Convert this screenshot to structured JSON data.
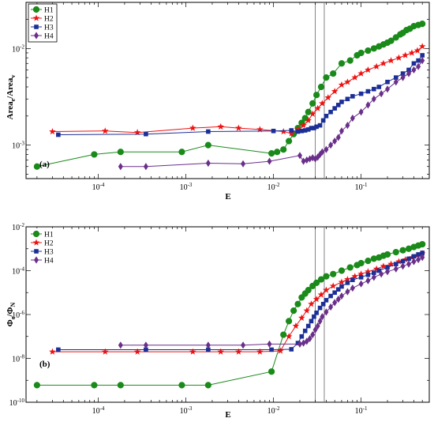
{
  "chart_data": [
    {
      "type": "line",
      "panel_label": "(a)",
      "xlabel": "E",
      "ylabel_main": "Area",
      "ylabel_sub1": "e",
      "ylabel_slash": "/Area",
      "ylabel_sub2": "v",
      "xscale": "log",
      "yscale": "log",
      "xlim": [
        1.5e-05,
        0.6
      ],
      "ylim": [
        0.00045,
        0.03
      ],
      "x_ticks": [
        {
          "value": 0.0001,
          "base": "10",
          "exp": "-4"
        },
        {
          "value": 0.001,
          "base": "10",
          "exp": "-3"
        },
        {
          "value": 0.01,
          "base": "10",
          "exp": "-2"
        },
        {
          "value": 0.1,
          "base": "10",
          "exp": "-1"
        }
      ],
      "y_ticks": [
        {
          "value": 0.001,
          "base": "10",
          "exp": "-3"
        },
        {
          "value": 0.01,
          "base": "10",
          "exp": "-2"
        }
      ],
      "vlines": [
        0.03,
        0.038
      ],
      "legend_position": "top-left",
      "series": [
        {
          "name": "H1",
          "color": "#1a8a1a",
          "marker": "circle",
          "x": [
            2e-05,
            9e-05,
            0.00018,
            0.0009,
            0.0018,
            0.0095,
            0.011,
            0.013,
            0.015,
            0.017,
            0.019,
            0.021,
            0.023,
            0.025,
            0.028,
            0.031,
            0.035,
            0.04,
            0.048,
            0.06,
            0.075,
            0.09,
            0.1,
            0.12,
            0.14,
            0.16,
            0.18,
            0.2,
            0.22,
            0.25,
            0.28,
            0.3,
            0.33,
            0.36,
            0.4,
            0.45,
            0.5
          ],
          "y": [
            0.0006,
            0.0008,
            0.00085,
            0.00085,
            0.001,
            0.00082,
            0.00085,
            0.0009,
            0.0011,
            0.0013,
            0.0015,
            0.0017,
            0.0019,
            0.0022,
            0.0027,
            0.0033,
            0.004,
            0.005,
            0.0055,
            0.007,
            0.0075,
            0.0085,
            0.009,
            0.0095,
            0.01,
            0.0105,
            0.011,
            0.0115,
            0.012,
            0.013,
            0.014,
            0.0145,
            0.0155,
            0.016,
            0.017,
            0.0175,
            0.018
          ]
        },
        {
          "name": "H2",
          "color": "#ee1111",
          "marker": "star",
          "x": [
            3e-05,
            0.00012,
            0.00028,
            0.0012,
            0.0025,
            0.004,
            0.007,
            0.013,
            0.016,
            0.019,
            0.022,
            0.025,
            0.028,
            0.032,
            0.036,
            0.042,
            0.05,
            0.06,
            0.07,
            0.085,
            0.1,
            0.12,
            0.15,
            0.18,
            0.22,
            0.27,
            0.32,
            0.38,
            0.44,
            0.5
          ],
          "y": [
            0.00138,
            0.0014,
            0.00135,
            0.0015,
            0.00155,
            0.0015,
            0.00145,
            0.00138,
            0.00132,
            0.00145,
            0.0016,
            0.0018,
            0.0021,
            0.0024,
            0.0027,
            0.0031,
            0.0036,
            0.0042,
            0.0045,
            0.005,
            0.0055,
            0.006,
            0.0065,
            0.007,
            0.0075,
            0.008,
            0.0085,
            0.009,
            0.0095,
            0.0105
          ]
        },
        {
          "name": "H3",
          "color": "#1c2f96",
          "marker": "square",
          "x": [
            3.5e-05,
            0.00035,
            0.0018,
            0.01,
            0.016,
            0.019,
            0.021,
            0.023,
            0.025,
            0.027,
            0.029,
            0.031,
            0.034,
            0.037,
            0.04,
            0.045,
            0.05,
            0.055,
            0.06,
            0.07,
            0.08,
            0.1,
            0.12,
            0.14,
            0.16,
            0.2,
            0.25,
            0.3,
            0.35,
            0.4,
            0.45,
            0.5
          ],
          "y": [
            0.00128,
            0.0013,
            0.00138,
            0.0014,
            0.00142,
            0.00138,
            0.0014,
            0.00142,
            0.00145,
            0.0015,
            0.0015,
            0.00155,
            0.0016,
            0.0018,
            0.002,
            0.0022,
            0.0024,
            0.0026,
            0.0028,
            0.003,
            0.0032,
            0.0034,
            0.0036,
            0.0038,
            0.004,
            0.0045,
            0.005,
            0.0055,
            0.006,
            0.007,
            0.0075,
            0.0085
          ]
        },
        {
          "name": "H4",
          "color": "#6a2f8a",
          "marker": "diamond",
          "x": [
            0.00018,
            0.00035,
            0.0018,
            0.0045,
            0.009,
            0.02,
            0.022,
            0.024,
            0.026,
            0.028,
            0.03,
            0.032,
            0.034,
            0.036,
            0.04,
            0.045,
            0.05,
            0.055,
            0.06,
            0.07,
            0.08,
            0.1,
            0.12,
            0.14,
            0.17,
            0.2,
            0.25,
            0.3,
            0.35,
            0.4,
            0.45,
            0.5
          ],
          "y": [
            0.0006,
            0.0006,
            0.00065,
            0.00064,
            0.00068,
            0.00078,
            0.00068,
            0.0007,
            0.00072,
            0.00074,
            0.00072,
            0.00075,
            0.0008,
            0.00085,
            0.0009,
            0.001,
            0.0011,
            0.0012,
            0.0014,
            0.0016,
            0.0019,
            0.0022,
            0.0026,
            0.003,
            0.0034,
            0.0038,
            0.0045,
            0.005,
            0.0055,
            0.006,
            0.0065,
            0.0075
          ]
        }
      ]
    },
    {
      "type": "line",
      "panel_label": "(b)",
      "xlabel": "E",
      "ylabel_main": "Φ",
      "ylabel_sub1": "e",
      "ylabel_slash": "/Φ",
      "ylabel_sub2": "N",
      "xscale": "log",
      "yscale": "log",
      "xlim": [
        1.5e-05,
        0.6
      ],
      "ylim": [
        1e-10,
        0.01
      ],
      "x_ticks": [
        {
          "value": 0.0001,
          "base": "10",
          "exp": "-4"
        },
        {
          "value": 0.001,
          "base": "10",
          "exp": "-3"
        },
        {
          "value": 0.01,
          "base": "10",
          "exp": "-2"
        },
        {
          "value": 0.1,
          "base": "10",
          "exp": "-1"
        }
      ],
      "y_ticks": [
        {
          "value": 1e-10,
          "base": "10",
          "exp": "-10"
        },
        {
          "value": 1e-08,
          "base": "10",
          "exp": "-8"
        },
        {
          "value": 1e-06,
          "base": "10",
          "exp": "-6"
        },
        {
          "value": 0.0001,
          "base": "10",
          "exp": "-4"
        },
        {
          "value": 0.01,
          "base": "10",
          "exp": "-2"
        }
      ],
      "vlines": [
        0.03,
        0.038
      ],
      "legend_position": "top-left",
      "series": [
        {
          "name": "H1",
          "color": "#1a8a1a",
          "marker": "circle",
          "x": [
            2e-05,
            9e-05,
            0.00018,
            0.0009,
            0.0018,
            0.0095,
            0.013,
            0.015,
            0.017,
            0.019,
            0.021,
            0.023,
            0.025,
            0.028,
            0.031,
            0.035,
            0.04,
            0.048,
            0.06,
            0.075,
            0.09,
            0.1,
            0.12,
            0.14,
            0.16,
            0.18,
            0.2,
            0.25,
            0.3,
            0.35,
            0.4,
            0.45,
            0.5
          ],
          "y": [
            6e-10,
            6e-10,
            6e-10,
            6e-10,
            6e-10,
            2.5e-09,
            1.2e-07,
            5e-07,
            1.5e-06,
            3e-06,
            6e-06,
            9e-06,
            1.3e-05,
            2e-05,
            2.8e-05,
            4e-05,
            5.5e-05,
            7e-05,
            0.0001,
            0.00014,
            0.00018,
            0.00022,
            0.00028,
            0.00035,
            0.0004,
            0.00048,
            0.00055,
            0.0007,
            0.00085,
            0.001,
            0.0012,
            0.0014,
            0.0016
          ]
        },
        {
          "name": "H2",
          "color": "#ee1111",
          "marker": "star",
          "x": [
            3e-05,
            0.00012,
            0.00028,
            0.0012,
            0.0025,
            0.004,
            0.007,
            0.012,
            0.015,
            0.018,
            0.021,
            0.024,
            0.027,
            0.031,
            0.035,
            0.04,
            0.048,
            0.06,
            0.07,
            0.085,
            0.1,
            0.12,
            0.15,
            0.18,
            0.22,
            0.27,
            0.32,
            0.38,
            0.44,
            0.5
          ],
          "y": [
            2e-08,
            2e-08,
            2e-08,
            2e-08,
            2e-08,
            2e-08,
            2e-08,
            2.2e-08,
            1e-07,
            3e-07,
            7e-07,
            1.5e-06,
            3e-06,
            5e-06,
            8e-06,
            1.3e-05,
            2e-05,
            3e-05,
            4e-05,
            5.5e-05,
            7e-05,
            9e-05,
            0.00012,
            0.00016,
            0.0002,
            0.00026,
            0.00032,
            0.0004,
            0.0005,
            0.0006
          ]
        },
        {
          "name": "H3",
          "color": "#1c2f96",
          "marker": "square",
          "x": [
            3.5e-05,
            0.00035,
            0.0018,
            0.0095,
            0.016,
            0.019,
            0.021,
            0.023,
            0.025,
            0.027,
            0.029,
            0.031,
            0.034,
            0.037,
            0.04,
            0.045,
            0.05,
            0.055,
            0.06,
            0.07,
            0.08,
            0.1,
            0.12,
            0.14,
            0.16,
            0.2,
            0.25,
            0.3,
            0.35,
            0.4,
            0.45,
            0.5
          ],
          "y": [
            2.5e-08,
            2.5e-08,
            2.5e-08,
            2.5e-08,
            2.6e-08,
            5e-08,
            1e-07,
            1.8e-07,
            3e-07,
            5e-07,
            8e-07,
            1.2e-06,
            2e-06,
            3e-06,
            4.5e-06,
            7e-06,
            1e-05,
            1.4e-05,
            1.9e-05,
            2.8e-05,
            3.8e-05,
            5e-05,
            6.5e-05,
            8e-05,
            0.0001,
            0.00014,
            0.0002,
            0.00027,
            0.00035,
            0.00045,
            0.00055,
            0.00065
          ]
        },
        {
          "name": "H4",
          "color": "#6a2f8a",
          "marker": "diamond",
          "x": [
            0.00018,
            0.00035,
            0.0018,
            0.0045,
            0.009,
            0.02,
            0.022,
            0.024,
            0.026,
            0.028,
            0.03,
            0.032,
            0.034,
            0.036,
            0.04,
            0.045,
            0.05,
            0.055,
            0.06,
            0.07,
            0.08,
            0.1,
            0.12,
            0.14,
            0.17,
            0.2,
            0.25,
            0.3,
            0.35,
            0.4,
            0.45,
            0.5
          ],
          "y": [
            4e-08,
            4e-08,
            4e-08,
            4e-08,
            4.5e-08,
            4.5e-08,
            5e-08,
            6e-08,
            8e-08,
            1.2e-07,
            2e-07,
            3e-07,
            5e-07,
            8e-07,
            1.3e-06,
            2.2e-06,
            3.5e-06,
            5e-06,
            7e-06,
            1.1e-05,
            1.6e-05,
            2.5e-05,
            3.5e-05,
            5e-05,
            7e-05,
            9e-05,
            0.00012,
            0.00016,
            0.0002,
            0.00026,
            0.00032,
            0.0004
          ]
        }
      ]
    }
  ]
}
